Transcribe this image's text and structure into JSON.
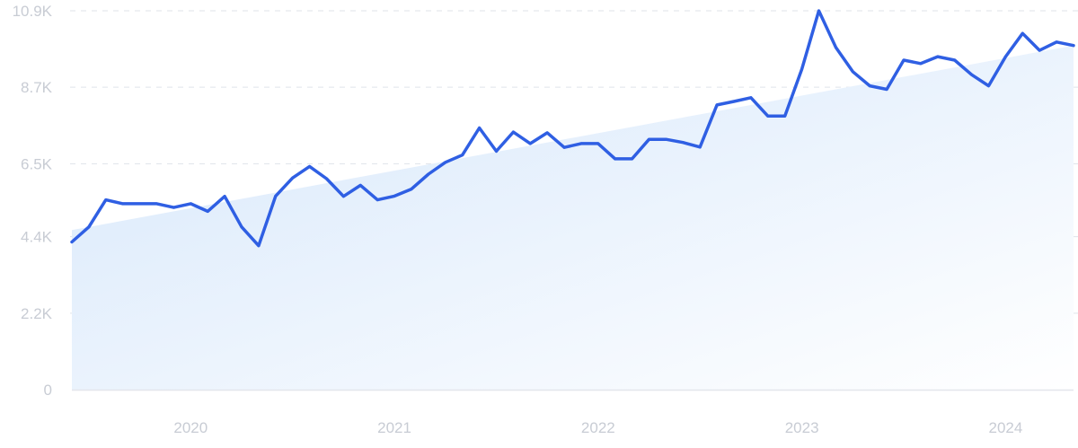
{
  "chart_data": {
    "type": "line",
    "title": "",
    "xlabel": "",
    "ylabel": "",
    "ylim": [
      0,
      10900
    ],
    "grid": true,
    "y_ticks": [
      {
        "value": 0,
        "label": "0"
      },
      {
        "value": 2200,
        "label": "2.2K"
      },
      {
        "value": 4400,
        "label": "4.4K"
      },
      {
        "value": 6500,
        "label": "6.5K"
      },
      {
        "value": 8700,
        "label": "8.7K"
      },
      {
        "value": 10900,
        "label": "10.9K"
      }
    ],
    "x_ticks": [
      {
        "index": 7,
        "label": "2020"
      },
      {
        "index": 19,
        "label": "2021"
      },
      {
        "index": 31,
        "label": "2022"
      },
      {
        "index": 43,
        "label": "2023"
      },
      {
        "index": 55,
        "label": "2024"
      }
    ],
    "x": [
      "2019-05",
      "2019-06",
      "2019-07",
      "2019-08",
      "2019-09",
      "2019-10",
      "2019-11",
      "2019-12",
      "2020-01",
      "2020-02",
      "2020-03",
      "2020-04",
      "2020-05",
      "2020-06",
      "2020-07",
      "2020-08",
      "2020-09",
      "2020-10",
      "2020-11",
      "2020-12",
      "2021-01",
      "2021-02",
      "2021-03",
      "2021-04",
      "2021-05",
      "2021-06",
      "2021-07",
      "2021-08",
      "2021-09",
      "2021-10",
      "2021-11",
      "2021-12",
      "2022-01",
      "2022-02",
      "2022-03",
      "2022-04",
      "2022-05",
      "2022-06",
      "2022-07",
      "2022-08",
      "2022-09",
      "2022-10",
      "2022-11",
      "2022-12",
      "2023-01",
      "2023-02",
      "2023-03",
      "2023-04",
      "2023-05",
      "2023-06",
      "2023-07",
      "2023-08",
      "2023-09",
      "2023-10",
      "2023-11",
      "2023-12",
      "2024-01",
      "2024-02",
      "2024-03",
      "2024-04"
    ],
    "series": [
      {
        "values": [
          4250,
          4680,
          5460,
          5350,
          5350,
          5350,
          5240,
          5350,
          5130,
          5560,
          4680,
          4140,
          5570,
          6090,
          6420,
          6070,
          5560,
          5880,
          5460,
          5570,
          5770,
          6200,
          6540,
          6750,
          7530,
          6860,
          7410,
          7080,
          7390,
          6970,
          7080,
          7080,
          6640,
          6640,
          7200,
          7200,
          7110,
          6980,
          8190,
          8290,
          8400,
          7870,
          7870,
          9220,
          10900,
          9850,
          9150,
          8740,
          8640,
          9480,
          9380,
          9580,
          9480,
          9060,
          8740,
          9580,
          10250,
          9760,
          10000,
          9900
        ]
      }
    ],
    "trend": {
      "start": 4590,
      "end": 9900
    },
    "colors": {
      "line": "#2f5fe3",
      "fill_start": "#d6e7fb",
      "fill_end": "#ffffff"
    }
  }
}
